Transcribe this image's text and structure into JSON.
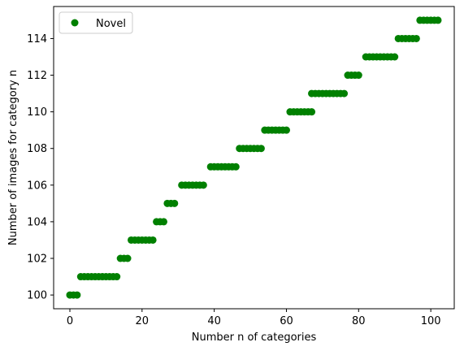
{
  "chart_data": {
    "type": "scatter",
    "xlabel": "Number n of categories",
    "ylabel": "Number of images for category n",
    "xlim": [
      -4.5,
      106.5
    ],
    "ylim": [
      99.25,
      115.75
    ],
    "xticks": [
      0,
      20,
      40,
      60,
      80,
      100
    ],
    "yticks": [
      100,
      102,
      104,
      106,
      108,
      110,
      112,
      114
    ],
    "legend_position": "top-left",
    "series": [
      {
        "name": "Novel",
        "color": "#008000",
        "points": [
          [
            0,
            100
          ],
          [
            1,
            100
          ],
          [
            2,
            100
          ],
          [
            3,
            101
          ],
          [
            4,
            101
          ],
          [
            5,
            101
          ],
          [
            6,
            101
          ],
          [
            7,
            101
          ],
          [
            8,
            101
          ],
          [
            9,
            101
          ],
          [
            10,
            101
          ],
          [
            11,
            101
          ],
          [
            12,
            101
          ],
          [
            13,
            101
          ],
          [
            14,
            102
          ],
          [
            15,
            102
          ],
          [
            16,
            102
          ],
          [
            17,
            103
          ],
          [
            18,
            103
          ],
          [
            19,
            103
          ],
          [
            20,
            103
          ],
          [
            21,
            103
          ],
          [
            22,
            103
          ],
          [
            23,
            103
          ],
          [
            24,
            104
          ],
          [
            25,
            104
          ],
          [
            26,
            104
          ],
          [
            27,
            105
          ],
          [
            28,
            105
          ],
          [
            29,
            105
          ],
          [
            31,
            106
          ],
          [
            32,
            106
          ],
          [
            33,
            106
          ],
          [
            34,
            106
          ],
          [
            35,
            106
          ],
          [
            36,
            106
          ],
          [
            37,
            106
          ],
          [
            39,
            107
          ],
          [
            40,
            107
          ],
          [
            41,
            107
          ],
          [
            42,
            107
          ],
          [
            43,
            107
          ],
          [
            44,
            107
          ],
          [
            45,
            107
          ],
          [
            46,
            107
          ],
          [
            47,
            108
          ],
          [
            48,
            108
          ],
          [
            49,
            108
          ],
          [
            50,
            108
          ],
          [
            51,
            108
          ],
          [
            52,
            108
          ],
          [
            53,
            108
          ],
          [
            54,
            109
          ],
          [
            55,
            109
          ],
          [
            56,
            109
          ],
          [
            57,
            109
          ],
          [
            58,
            109
          ],
          [
            59,
            109
          ],
          [
            60,
            109
          ],
          [
            61,
            110
          ],
          [
            62,
            110
          ],
          [
            63,
            110
          ],
          [
            64,
            110
          ],
          [
            65,
            110
          ],
          [
            66,
            110
          ],
          [
            67,
            110
          ],
          [
            67,
            111
          ],
          [
            68,
            111
          ],
          [
            69,
            111
          ],
          [
            70,
            111
          ],
          [
            71,
            111
          ],
          [
            72,
            111
          ],
          [
            73,
            111
          ],
          [
            74,
            111
          ],
          [
            75,
            111
          ],
          [
            76,
            111
          ],
          [
            77,
            112
          ],
          [
            78,
            112
          ],
          [
            79,
            112
          ],
          [
            80,
            112
          ],
          [
            82,
            113
          ],
          [
            83,
            113
          ],
          [
            84,
            113
          ],
          [
            85,
            113
          ],
          [
            86,
            113
          ],
          [
            87,
            113
          ],
          [
            88,
            113
          ],
          [
            89,
            113
          ],
          [
            90,
            113
          ],
          [
            91,
            114
          ],
          [
            92,
            114
          ],
          [
            93,
            114
          ],
          [
            94,
            114
          ],
          [
            95,
            114
          ],
          [
            96,
            114
          ],
          [
            97,
            115
          ],
          [
            98,
            115
          ],
          [
            99,
            115
          ],
          [
            100,
            115
          ],
          [
            101,
            115
          ],
          [
            102,
            115
          ]
        ]
      }
    ]
  }
}
